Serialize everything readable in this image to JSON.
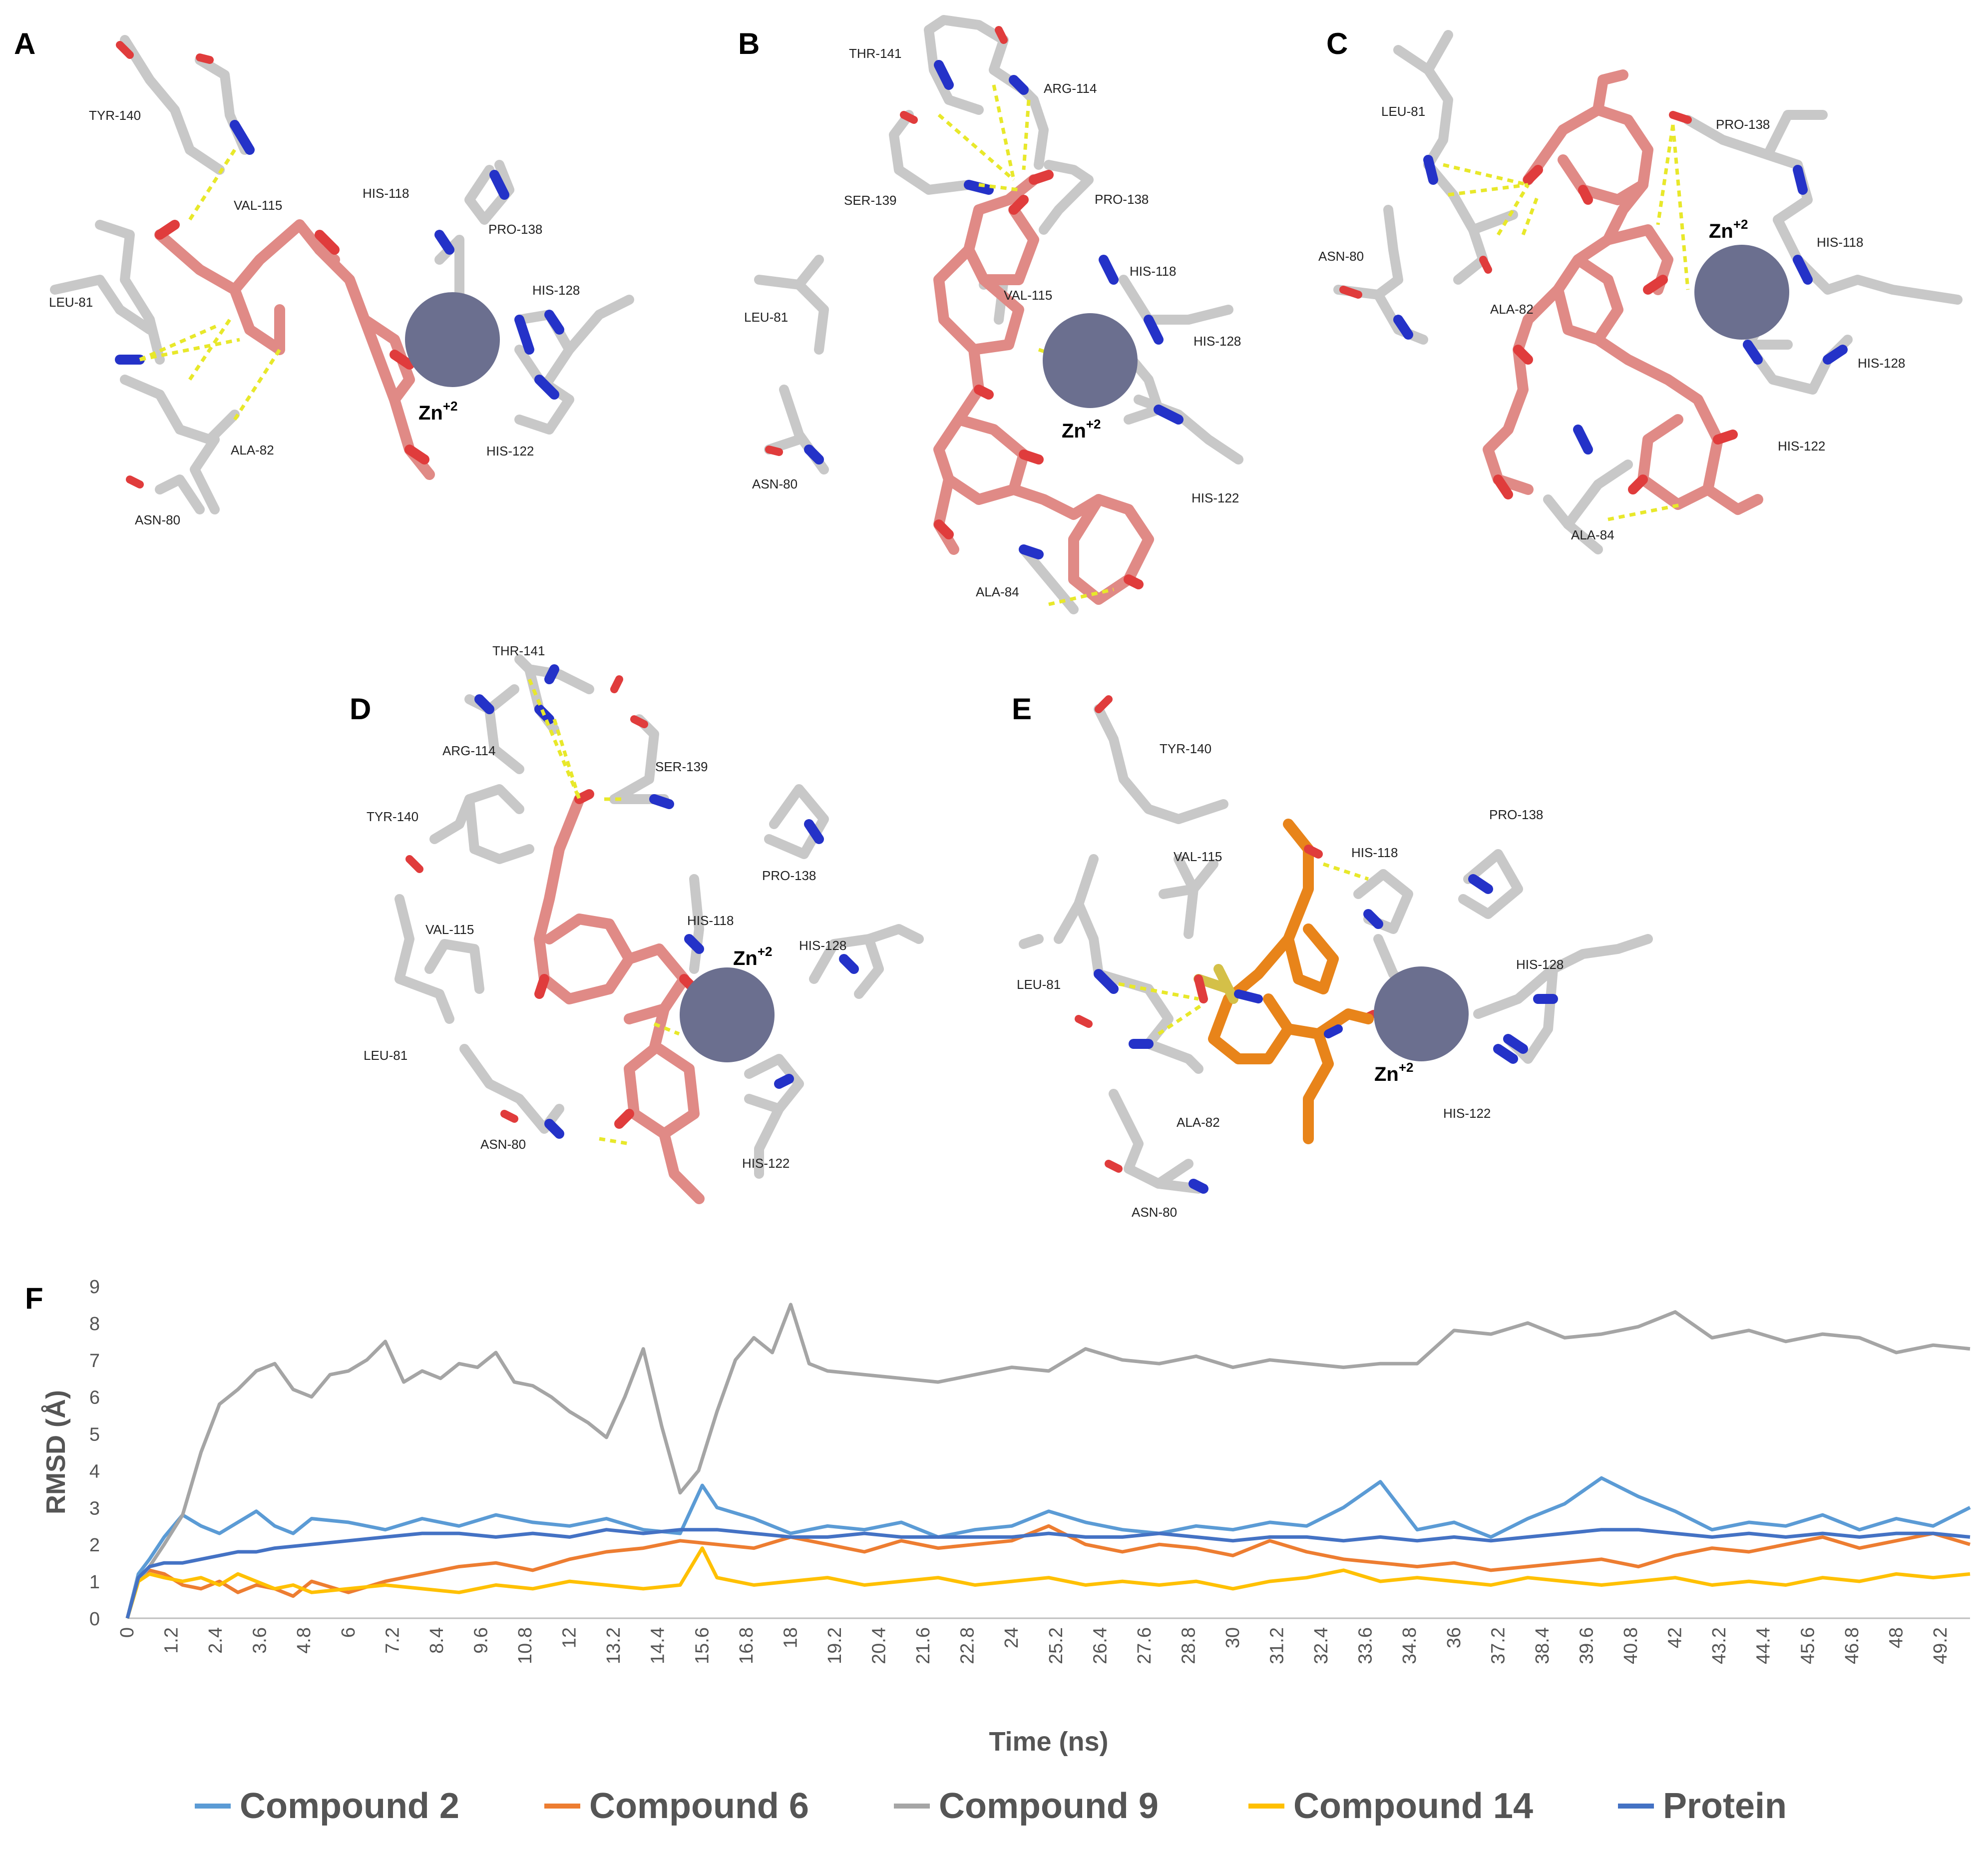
{
  "figure": {
    "panels": [
      {
        "letter": "A",
        "residues": [
          "TYR-140",
          "VAL-115",
          "HIS-118",
          "PRO-138",
          "HIS-128",
          "LEU-81",
          "ALA-82",
          "ASN-80",
          "HIS-122"
        ],
        "ion": "Zn",
        "ion_charge": "+2",
        "ligand_color": "#e08a86"
      },
      {
        "letter": "B",
        "residues": [
          "THR-141",
          "ARG-114",
          "SER-139",
          "PRO-138",
          "VAL-115",
          "HIS-118",
          "LEU-81",
          "HIS-128",
          "ASN-80",
          "HIS-122",
          "ALA-84"
        ],
        "ion": "Zn",
        "ion_charge": "+2",
        "ligand_color": "#e08a86"
      },
      {
        "letter": "C",
        "residues": [
          "LEU-81",
          "PRO-138",
          "ASN-80",
          "HIS-118",
          "ALA-82",
          "HIS-128",
          "HIS-122",
          "ALA-84"
        ],
        "ion": "Zn",
        "ion_charge": "+2",
        "ligand_color": "#e08a86"
      },
      {
        "letter": "D",
        "residues": [
          "THR-141",
          "ARG-114",
          "SER-139",
          "TYR-140",
          "PRO-138",
          "VAL-115",
          "HIS-118",
          "HIS-128",
          "LEU-81",
          "ASN-80",
          "HIS-122"
        ],
        "ion": "Zn",
        "ion_charge": "+2",
        "ligand_color": "#e08a86"
      },
      {
        "letter": "E",
        "residues": [
          "TYR-140",
          "PRO-138",
          "VAL-115",
          "HIS-118",
          "HIS-128",
          "LEU-81",
          "ALA-82",
          "HIS-122",
          "ASN-80"
        ],
        "ion": "Zn",
        "ion_charge": "+2",
        "ligand_color": "#e8841a"
      }
    ]
  },
  "chart_panel_letter": "F",
  "chart_data": {
    "type": "line",
    "xlabel": "Time (ns)",
    "ylabel": "RMSD (Å)",
    "ylim": [
      0,
      9
    ],
    "xlim": [
      0,
      50
    ],
    "yticks": [
      0,
      1,
      2,
      3,
      4,
      5,
      6,
      7,
      8,
      9
    ],
    "xticks": [
      "0",
      "1.2",
      "2.4",
      "3.6",
      "4.8",
      "6",
      "7.2",
      "8.4",
      "9.6",
      "10.8",
      "12",
      "13.2",
      "14.4",
      "15.6",
      "16.8",
      "18",
      "19.2",
      "20.4",
      "21.6",
      "22.8",
      "24",
      "25.2",
      "26.4",
      "27.6",
      "28.8",
      "30",
      "31.2",
      "32.4",
      "33.6",
      "34.8",
      "36",
      "37.2",
      "38.4",
      "39.6",
      "40.8",
      "42",
      "43.2",
      "44.4",
      "45.6",
      "46.8",
      "48",
      "49.2"
    ],
    "legend_position": "bottom",
    "grid": false,
    "series": [
      {
        "name": "Compound 2",
        "color": "#5b9bd5",
        "x": [
          0,
          0.3,
          0.6,
          1,
          1.5,
          2,
          2.5,
          3,
          3.5,
          4,
          4.5,
          5,
          6,
          7,
          8,
          9,
          10,
          11,
          12,
          13,
          14,
          15,
          15.6,
          16,
          17,
          18,
          19,
          20,
          21,
          22,
          23,
          24,
          25,
          26,
          27,
          28,
          29,
          30,
          31,
          32,
          33,
          34,
          35,
          36,
          37,
          38,
          39,
          40,
          41,
          42,
          43,
          44,
          45,
          46,
          47,
          48,
          49,
          50
        ],
        "y": [
          0,
          1.2,
          1.6,
          2.2,
          2.8,
          2.5,
          2.3,
          2.6,
          2.9,
          2.5,
          2.3,
          2.7,
          2.6,
          2.4,
          2.7,
          2.5,
          2.8,
          2.6,
          2.5,
          2.7,
          2.4,
          2.3,
          3.6,
          3.0,
          2.7,
          2.3,
          2.5,
          2.4,
          2.6,
          2.2,
          2.4,
          2.5,
          2.9,
          2.6,
          2.4,
          2.3,
          2.5,
          2.4,
          2.6,
          2.5,
          3.0,
          3.7,
          2.4,
          2.6,
          2.2,
          2.7,
          3.1,
          3.8,
          3.3,
          2.9,
          2.4,
          2.6,
          2.5,
          2.8,
          2.4,
          2.7,
          2.5,
          3.0
        ]
      },
      {
        "name": "Compound 6",
        "color": "#ed7d31",
        "x": [
          0,
          0.3,
          0.6,
          1,
          1.5,
          2,
          2.5,
          3,
          3.5,
          4,
          4.5,
          5,
          6,
          7,
          8,
          9,
          10,
          11,
          12,
          13,
          14,
          15,
          16,
          17,
          18,
          19,
          20,
          21,
          22,
          23,
          24,
          25,
          26,
          27,
          28,
          29,
          30,
          31,
          32,
          33,
          34,
          35,
          36,
          37,
          38,
          39,
          40,
          41,
          42,
          43,
          44,
          45,
          46,
          47,
          48,
          49,
          50
        ],
        "y": [
          0,
          1.1,
          1.3,
          1.2,
          0.9,
          0.8,
          1.0,
          0.7,
          0.9,
          0.8,
          0.6,
          1.0,
          0.7,
          1.0,
          1.2,
          1.4,
          1.5,
          1.3,
          1.6,
          1.8,
          1.9,
          2.1,
          2.0,
          1.9,
          2.2,
          2.0,
          1.8,
          2.1,
          1.9,
          2.0,
          2.1,
          2.5,
          2.0,
          1.8,
          2.0,
          1.9,
          1.7,
          2.1,
          1.8,
          1.6,
          1.5,
          1.4,
          1.5,
          1.3,
          1.4,
          1.5,
          1.6,
          1.4,
          1.7,
          1.9,
          1.8,
          2.0,
          2.2,
          1.9,
          2.1,
          2.3,
          2.0
        ]
      },
      {
        "name": "Compound 9",
        "color": "#a5a5a5",
        "x": [
          0,
          0.3,
          0.6,
          1,
          1.5,
          2,
          2.5,
          3,
          3.5,
          4,
          4.5,
          5,
          5.5,
          6,
          6.5,
          7,
          7.5,
          8,
          8.5,
          9,
          9.5,
          10,
          10.5,
          11,
          11.5,
          12,
          12.5,
          13,
          13.5,
          14,
          14.5,
          15,
          15.5,
          16,
          16.5,
          17,
          17.5,
          18,
          18.5,
          19,
          20,
          21,
          22,
          23,
          24,
          25,
          26,
          27,
          28,
          29,
          30,
          31,
          32,
          33,
          34,
          35,
          36,
          37,
          38,
          39,
          40,
          41,
          42,
          43,
          44,
          45,
          46,
          47,
          48,
          49,
          50
        ],
        "y": [
          0,
          1.0,
          1.4,
          2.0,
          2.8,
          4.5,
          5.8,
          6.2,
          6.7,
          6.9,
          6.2,
          6.0,
          6.6,
          6.7,
          7.0,
          7.5,
          6.4,
          6.7,
          6.5,
          6.9,
          6.8,
          7.2,
          6.4,
          6.3,
          6.0,
          5.6,
          5.3,
          4.9,
          6.0,
          7.3,
          5.2,
          3.4,
          4.0,
          5.6,
          7.0,
          7.6,
          7.2,
          8.5,
          6.9,
          6.7,
          6.6,
          6.5,
          6.4,
          6.6,
          6.8,
          6.7,
          7.3,
          7.0,
          6.9,
          7.1,
          6.8,
          7.0,
          6.9,
          6.8,
          6.9,
          6.9,
          7.8,
          7.7,
          8.0,
          7.6,
          7.7,
          7.9,
          8.3,
          7.6,
          7.8,
          7.5,
          7.7,
          7.6,
          7.2,
          7.4,
          7.3
        ]
      },
      {
        "name": "Compound 14",
        "color": "#ffc000",
        "x": [
          0,
          0.3,
          0.6,
          1,
          1.5,
          2,
          2.5,
          3,
          3.5,
          4,
          4.5,
          5,
          6,
          7,
          8,
          9,
          10,
          11,
          12,
          13,
          14,
          15,
          15.6,
          16,
          17,
          18,
          19,
          20,
          21,
          22,
          23,
          24,
          25,
          26,
          27,
          28,
          29,
          30,
          31,
          32,
          33,
          34,
          35,
          36,
          37,
          38,
          39,
          40,
          41,
          42,
          43,
          44,
          45,
          46,
          47,
          48,
          49,
          50
        ],
        "y": [
          0,
          1.0,
          1.2,
          1.1,
          1.0,
          1.1,
          0.9,
          1.2,
          1.0,
          0.8,
          0.9,
          0.7,
          0.8,
          0.9,
          0.8,
          0.7,
          0.9,
          0.8,
          1.0,
          0.9,
          0.8,
          0.9,
          1.9,
          1.1,
          0.9,
          1.0,
          1.1,
          0.9,
          1.0,
          1.1,
          0.9,
          1.0,
          1.1,
          0.9,
          1.0,
          0.9,
          1.0,
          0.8,
          1.0,
          1.1,
          1.3,
          1.0,
          1.1,
          1.0,
          0.9,
          1.1,
          1.0,
          0.9,
          1.0,
          1.1,
          0.9,
          1.0,
          0.9,
          1.1,
          1.0,
          1.2,
          1.1,
          1.2
        ]
      },
      {
        "name": "Protein",
        "color": "#4472c4",
        "x": [
          0,
          0.3,
          0.6,
          1,
          1.5,
          2,
          2.5,
          3,
          3.5,
          4,
          5,
          6,
          7,
          8,
          9,
          10,
          11,
          12,
          13,
          14,
          15,
          16,
          17,
          18,
          19,
          20,
          21,
          22,
          23,
          24,
          25,
          26,
          27,
          28,
          29,
          30,
          31,
          32,
          33,
          34,
          35,
          36,
          37,
          38,
          39,
          40,
          41,
          42,
          43,
          44,
          45,
          46,
          47,
          48,
          49,
          50
        ],
        "y": [
          0,
          1.1,
          1.4,
          1.5,
          1.5,
          1.6,
          1.7,
          1.8,
          1.8,
          1.9,
          2.0,
          2.1,
          2.2,
          2.3,
          2.3,
          2.2,
          2.3,
          2.2,
          2.4,
          2.3,
          2.4,
          2.4,
          2.3,
          2.2,
          2.2,
          2.3,
          2.2,
          2.2,
          2.2,
          2.2,
          2.3,
          2.2,
          2.2,
          2.3,
          2.2,
          2.1,
          2.2,
          2.2,
          2.1,
          2.2,
          2.1,
          2.2,
          2.1,
          2.2,
          2.3,
          2.4,
          2.4,
          2.3,
          2.2,
          2.3,
          2.2,
          2.3,
          2.2,
          2.3,
          2.3,
          2.2
        ]
      }
    ]
  }
}
